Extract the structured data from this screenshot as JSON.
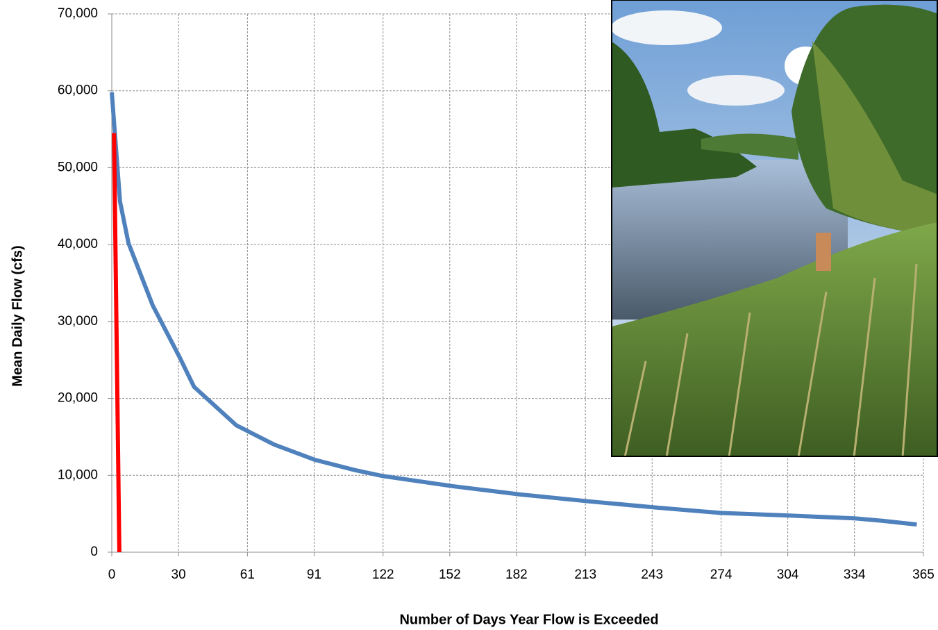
{
  "chart_data": {
    "type": "line",
    "x_label": "Number of Days Year Flow is Exceeded",
    "y_label": "Mean Daily Flow (cfs)",
    "xlim": [
      0,
      365
    ],
    "ylim": [
      0,
      70000
    ],
    "xticks": [
      0,
      30,
      61,
      91,
      122,
      152,
      182,
      213,
      243,
      274,
      304,
      334,
      365
    ],
    "yticks": [
      {
        "value": 0,
        "label": "0"
      },
      {
        "value": 10000,
        "label": "10,000"
      },
      {
        "value": 20000,
        "label": "20,000"
      },
      {
        "value": 30000,
        "label": "30,000"
      },
      {
        "value": 40000,
        "label": "40,000"
      },
      {
        "value": 50000,
        "label": "50,000"
      },
      {
        "value": 60000,
        "label": "60,000"
      },
      {
        "value": 70000,
        "label": "70,000"
      }
    ],
    "grid": true,
    "series": [
      {
        "color": "#4f81bd",
        "x": [
          0,
          3.7,
          7.5,
          18.4,
          30.6,
          37,
          56,
          73,
          91.5,
          109,
          122,
          153,
          184,
          215,
          245,
          274,
          302,
          334,
          346,
          362
        ],
        "values": [
          59800,
          45600,
          40200,
          32100,
          25300,
          21500,
          16500,
          14000,
          12000,
          10700,
          9900,
          8600,
          7500,
          6600,
          5800,
          5100,
          4800,
          4400,
          4100,
          3600
        ]
      },
      {
        "color": "#ff0000",
        "x": [
          1,
          3.4
        ],
        "values": [
          54500,
          0
        ]
      }
    ]
  }
}
